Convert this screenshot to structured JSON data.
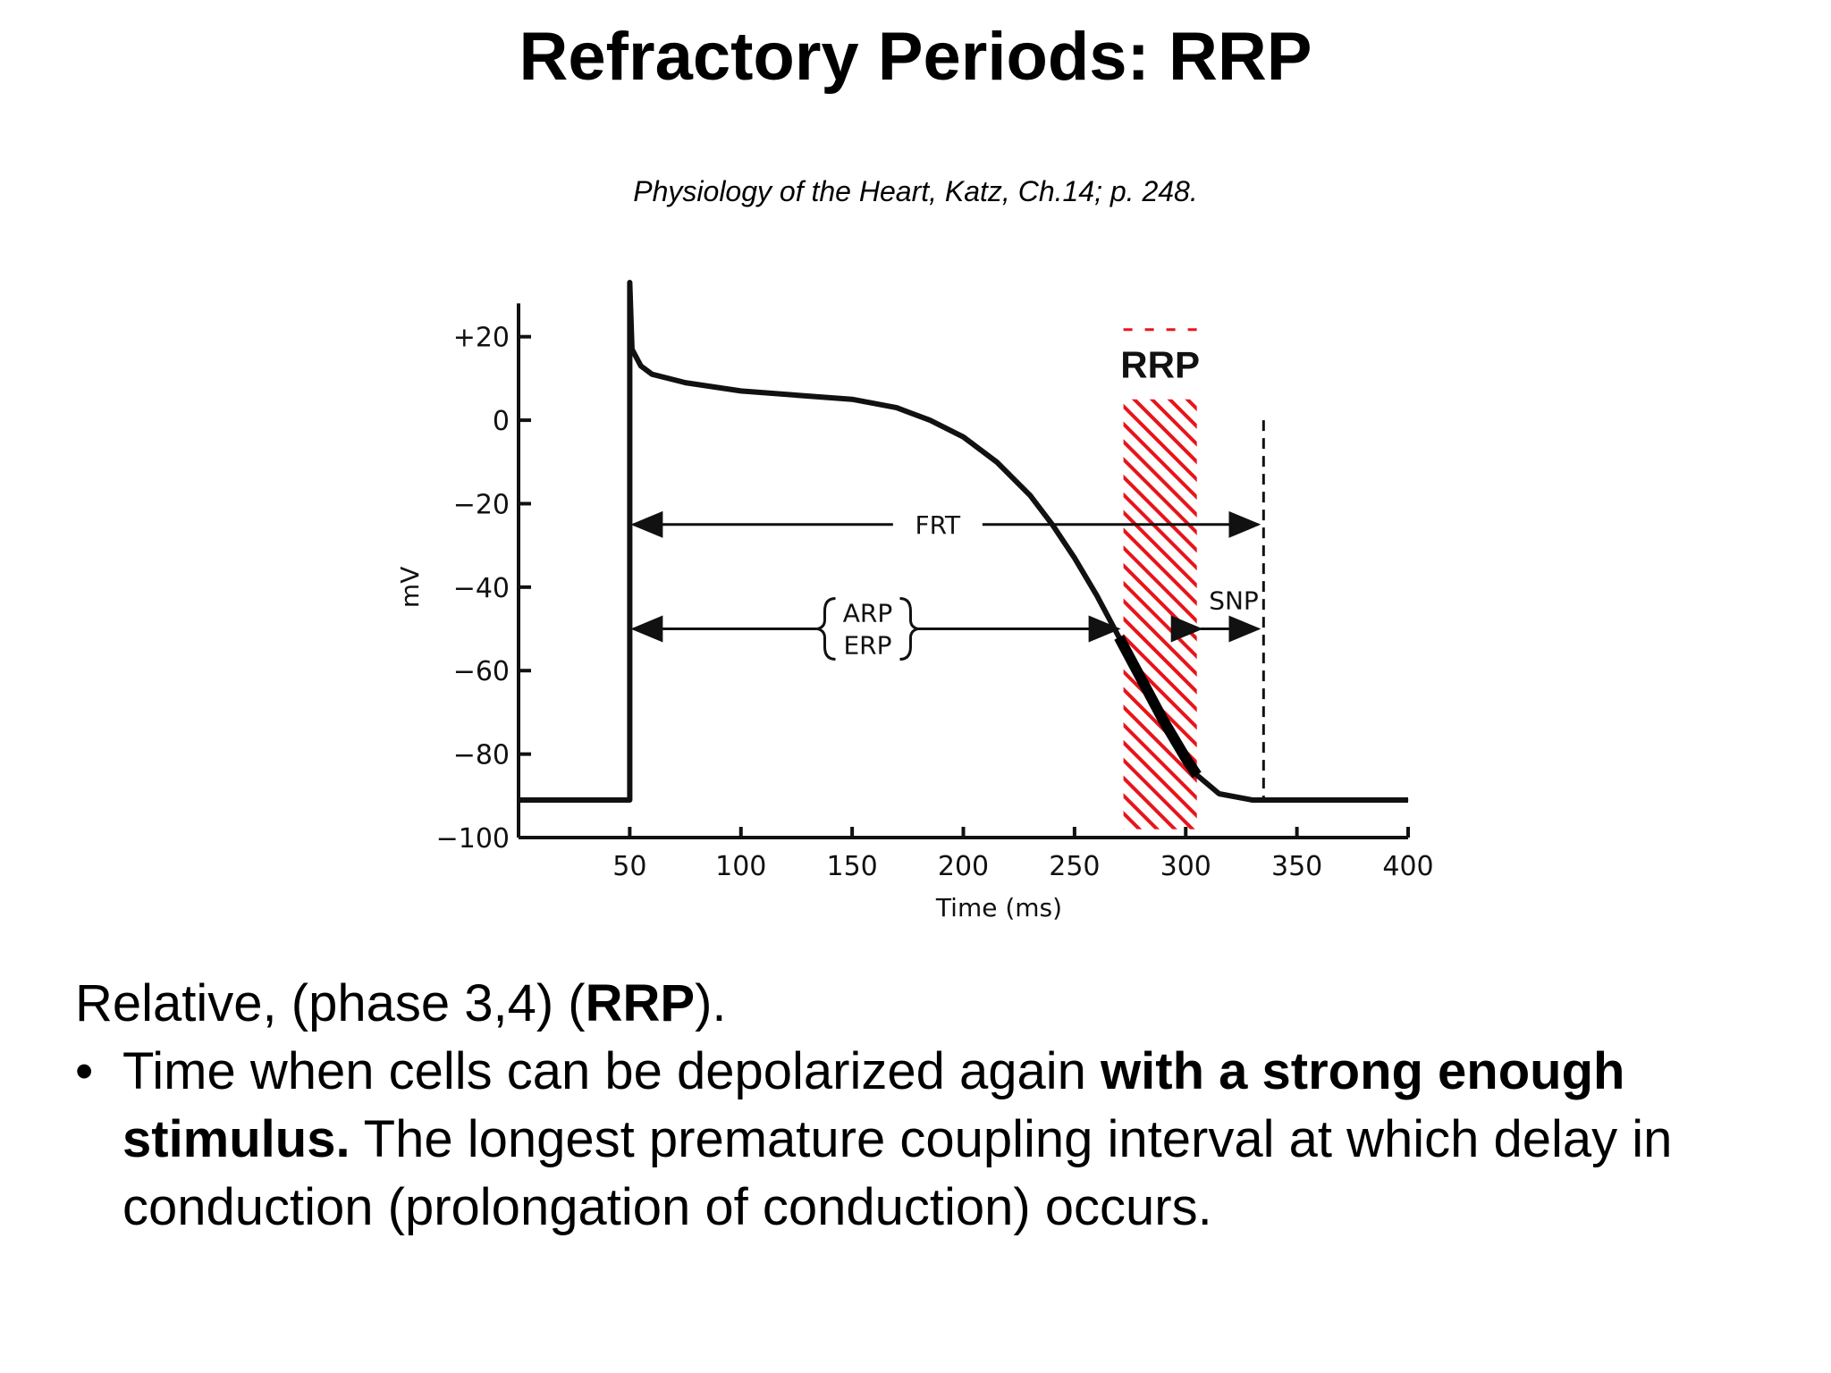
{
  "slide": {
    "title": "Refractory Periods: RRP",
    "citation": "Physiology of the Heart, Katz, Ch.14; p. 248."
  },
  "body": {
    "line1_prefix": "Relative, (phase 3,4) (",
    "line1_bold": "RRP",
    "line1_suffix": ").",
    "bullet_marker": "•",
    "bullet_text_1": "Time when cells can be depolarized again ",
    "bullet_bold_1": "with a strong enough stimulus.",
    "bullet_text_2": " The longest premature coupling interval at which delay in conduction (prolongation of conduction) occurs."
  },
  "chart_data": {
    "type": "line",
    "title": "",
    "xlabel": "Time (ms)",
    "ylabel": "mV",
    "xlim": [
      0,
      400
    ],
    "ylim": [
      -100,
      30
    ],
    "x_ticks": [
      50,
      100,
      150,
      200,
      250,
      300,
      350,
      400
    ],
    "x_tick_labels": [
      "50",
      "100",
      "150",
      "200",
      "250",
      "300",
      "350",
      "400"
    ],
    "y_ticks": [
      20,
      0,
      -20,
      -40,
      -60,
      -80,
      -100
    ],
    "y_tick_labels": [
      "+20",
      "0",
      "−20",
      "−40",
      "−60",
      "−80",
      "−100"
    ],
    "series": [
      {
        "values": [
          [
            0,
            -91
          ],
          [
            50,
            -91
          ],
          [
            50,
            33
          ],
          [
            51,
            17
          ],
          [
            55,
            13
          ],
          [
            60,
            11
          ],
          [
            75,
            9
          ],
          [
            100,
            7
          ],
          [
            125,
            6
          ],
          [
            150,
            5
          ],
          [
            170,
            3
          ],
          [
            185,
            0
          ],
          [
            200,
            -4
          ],
          [
            215,
            -10
          ],
          [
            230,
            -18
          ],
          [
            240,
            -25
          ],
          [
            250,
            -33
          ],
          [
            260,
            -42
          ],
          [
            270,
            -52
          ],
          [
            280,
            -62
          ],
          [
            290,
            -72
          ],
          [
            300,
            -81
          ],
          [
            305,
            -85
          ],
          [
            315,
            -89.5
          ],
          [
            330,
            -91
          ],
          [
            400,
            -91
          ]
        ]
      }
    ],
    "emphasis_segment": {
      "x_range": [
        272,
        305
      ],
      "color": "#000000"
    },
    "region": {
      "label": "RRP",
      "x_range": [
        272,
        305
      ],
      "y_range": [
        -98,
        5
      ],
      "color": "#e8141b"
    },
    "vertical_dashed_line": {
      "x": 335,
      "y_range": [
        -91,
        0
      ]
    },
    "annotations": [
      {
        "label": "FRT",
        "x_from": 50,
        "x_to": 335,
        "y": -25
      },
      {
        "label": "ARP",
        "label2": "ERP",
        "x_from": 50,
        "x_to": 272,
        "y": -50
      },
      {
        "label": "SNP",
        "x_from": 305,
        "x_to": 335,
        "y": -50
      }
    ]
  }
}
